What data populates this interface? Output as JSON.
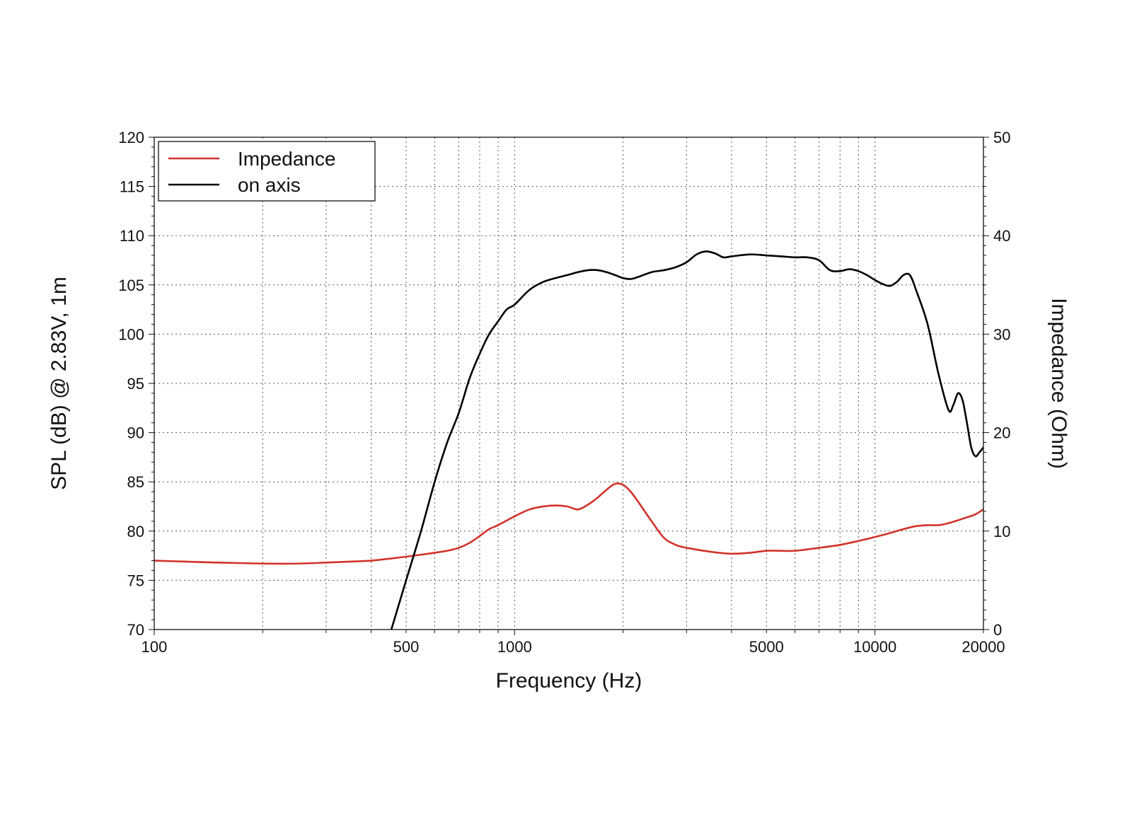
{
  "chart_data": {
    "type": "line",
    "title": "",
    "xlabel": "Frequency (Hz)",
    "ylabel_left": "SPL (dB) @ 2.83V, 1m",
    "ylabel_right": "Impedance (Ohm)",
    "x_scale": "log",
    "xlim": [
      100,
      20000
    ],
    "ylim_left": [
      70,
      120
    ],
    "ylim_right": [
      0,
      50
    ],
    "x_ticks": [
      {
        "value": 100,
        "label": "100"
      },
      {
        "value": 500,
        "label": "500"
      },
      {
        "value": 1000,
        "label": "1000"
      },
      {
        "value": 5000,
        "label": "5000"
      },
      {
        "value": 10000,
        "label": "10000"
      },
      {
        "value": 20000,
        "label": "20000"
      }
    ],
    "y_left_ticks": [
      {
        "value": 70,
        "label": "70"
      },
      {
        "value": 75,
        "label": "75"
      },
      {
        "value": 80,
        "label": "80"
      },
      {
        "value": 85,
        "label": "85"
      },
      {
        "value": 90,
        "label": "90"
      },
      {
        "value": 95,
        "label": "95"
      },
      {
        "value": 100,
        "label": "100"
      },
      {
        "value": 105,
        "label": "105"
      },
      {
        "value": 110,
        "label": "110"
      },
      {
        "value": 115,
        "label": "115"
      },
      {
        "value": 120,
        "label": "120"
      }
    ],
    "y_right_ticks": [
      {
        "value": 0,
        "label": "0"
      },
      {
        "value": 10,
        "label": "10"
      },
      {
        "value": 20,
        "label": "20"
      },
      {
        "value": 30,
        "label": "30"
      },
      {
        "value": 40,
        "label": "40"
      },
      {
        "value": 50,
        "label": "50"
      }
    ],
    "grid": true,
    "legend_position": "top-left",
    "series": [
      {
        "name": "Impedance",
        "axis": "right",
        "color": "#d2332b",
        "x": [
          100,
          150,
          200,
          250,
          300,
          350,
          400,
          450,
          500,
          550,
          600,
          650,
          700,
          750,
          800,
          850,
          900,
          1000,
          1100,
          1200,
          1300,
          1400,
          1500,
          1600,
          1700,
          1800,
          1900,
          2000,
          2100,
          2200,
          2400,
          2600,
          2800,
          3000,
          3500,
          4000,
          4500,
          5000,
          5500,
          6000,
          7000,
          8000,
          9000,
          10000,
          11000,
          12000,
          13000,
          14000,
          15000,
          16000,
          17000,
          18000,
          19000,
          20000
        ],
        "y": [
          7.0,
          6.8,
          6.7,
          6.7,
          6.8,
          6.9,
          7.0,
          7.2,
          7.4,
          7.6,
          7.8,
          8.0,
          8.3,
          8.8,
          9.5,
          10.2,
          10.6,
          11.5,
          12.2,
          12.5,
          12.6,
          12.5,
          12.2,
          12.7,
          13.4,
          14.2,
          14.8,
          14.7,
          14.0,
          13.0,
          11.0,
          9.3,
          8.6,
          8.3,
          7.9,
          7.7,
          7.8,
          8.0,
          8.0,
          8.0,
          8.3,
          8.6,
          9.0,
          9.4,
          9.8,
          10.2,
          10.5,
          10.6,
          10.6,
          10.8,
          11.1,
          11.4,
          11.7,
          12.2
        ]
      },
      {
        "name": "on axis",
        "axis": "left",
        "color": "#000000",
        "x": [
          455,
          500,
          550,
          600,
          650,
          700,
          750,
          800,
          850,
          900,
          950,
          1000,
          1100,
          1200,
          1300,
          1400,
          1500,
          1600,
          1700,
          1800,
          1900,
          2000,
          2100,
          2200,
          2400,
          2600,
          2800,
          3000,
          3200,
          3400,
          3600,
          3800,
          4000,
          4500,
          5000,
          5500,
          6000,
          6500,
          7000,
          7500,
          8000,
          8500,
          9000,
          9500,
          10000,
          10500,
          11000,
          11500,
          12000,
          12500,
          13000,
          14000,
          15000,
          16000,
          16500,
          17000,
          17500,
          18000,
          18500,
          19000,
          19500,
          20000
        ],
        "y": [
          70,
          75,
          80,
          85,
          89,
          92,
          95.5,
          98,
          100,
          101.3,
          102.5,
          103,
          104.5,
          105.3,
          105.7,
          106,
          106.3,
          106.5,
          106.5,
          106.3,
          106,
          105.7,
          105.6,
          105.8,
          106.3,
          106.5,
          106.8,
          107.3,
          108.1,
          108.4,
          108.2,
          107.8,
          107.9,
          108.1,
          108.0,
          107.9,
          107.8,
          107.8,
          107.5,
          106.5,
          106.4,
          106.6,
          106.4,
          106.0,
          105.5,
          105.1,
          104.9,
          105.3,
          106.0,
          106.0,
          104.5,
          101.0,
          96.0,
          92.3,
          92.8,
          94.0,
          93.3,
          91.0,
          88.5,
          87.6,
          88.0,
          88.5
        ]
      }
    ]
  }
}
